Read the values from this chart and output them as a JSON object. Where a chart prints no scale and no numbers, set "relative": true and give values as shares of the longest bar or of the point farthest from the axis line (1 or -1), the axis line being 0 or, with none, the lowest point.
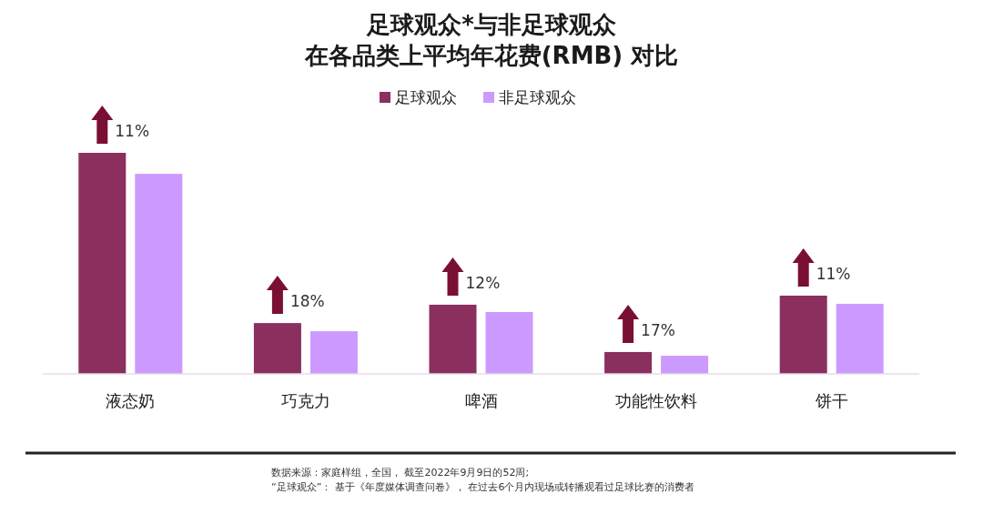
{
  "chart_data": {
    "type": "bar",
    "title": "足球观众*与非足球观众",
    "subtitle": "在各品类上平均年花费(RMB) 对比",
    "categories": [
      "液态奶",
      "巧克力",
      "啤酒",
      "功能性饮料",
      "饼干"
    ],
    "relative": true,
    "series": [
      {
        "name": "足球观众",
        "color": "#8b2f5e",
        "values": [
          1,
          0.23,
          0.313,
          0.099,
          0.354
        ]
      },
      {
        "name": "非足球观众",
        "color": "#cc9aff",
        "values": [
          0.905,
          0.193,
          0.28,
          0.082,
          0.317
        ]
      }
    ],
    "annotations": [
      "11%",
      "18%",
      "12%",
      "17%",
      "11%",
      "数据来源：家庭样组，全国， 截至2022年9月9日的52周;",
      "“足球观众”： 基于《年度媒体调查问卷》， 在过去6个月内现场或转播观看过足球比赛的消费者"
    ],
    "legend": "top"
  }
}
